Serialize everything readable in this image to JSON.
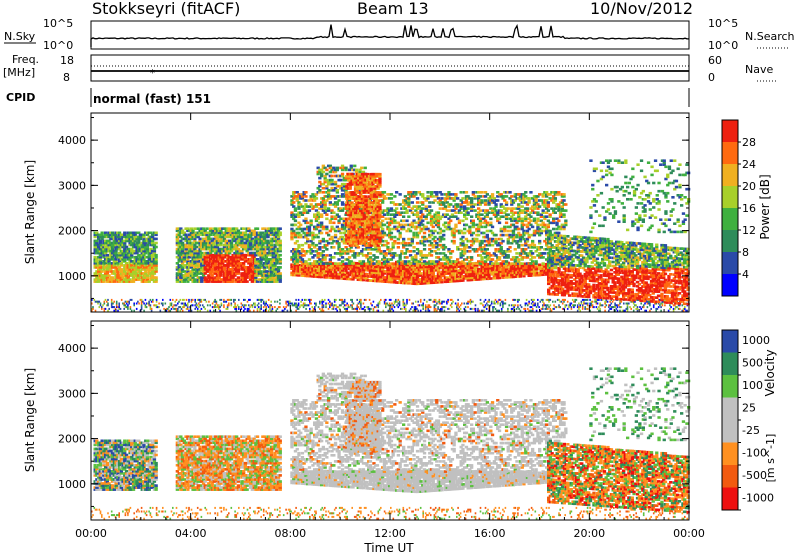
{
  "header": {
    "station": "Stokkseyri (fitACF)",
    "beam": "Beam 13",
    "date": "10/Nov/2012"
  },
  "top_panels": {
    "nsky_label": "N.Sky",
    "nsky_ticks": [
      "10^5",
      "10^0"
    ],
    "nsearch_ticks": [
      "10^5",
      "10^0"
    ],
    "nsearch_label": "N.Search",
    "freq_label": "Freq.",
    "freq_unit": "[MHz]",
    "freq_ticks": [
      "18",
      "8"
    ],
    "nave_ticks": [
      "60",
      "0"
    ],
    "nave_label": "Nave",
    "cpid_label": "CPID",
    "cpid_value": "normal (fast) 151"
  },
  "colors": {
    "power": [
      "#0000ff",
      "#2a4aa8",
      "#2e8c5a",
      "#3fb03f",
      "#a8d02a",
      "#f0b020",
      "#ff6a10",
      "#ee2010"
    ],
    "velocity": [
      "#ee1010",
      "#f25a10",
      "#ff9020",
      "#c0c0c0",
      "#c0c0c0",
      "#5cc040",
      "#2e8c5a",
      "#2a4aa8"
    ],
    "ground_scatter": "#c0c0c0"
  },
  "chart_data": [
    {
      "type": "heatmap",
      "panel": "power",
      "xlabel": "",
      "ylabel": "Slant Range [km]",
      "yticks": [
        "1000",
        "2000",
        "3000",
        "4000"
      ],
      "ylim": [
        200,
        4600
      ],
      "colorbar_label": "Power [dB]",
      "colorbar_ticks": [
        "4",
        "8",
        "12",
        "16",
        "20",
        "24",
        "28"
      ],
      "color_range": [
        0,
        32
      ]
    },
    {
      "type": "heatmap",
      "panel": "velocity",
      "xlabel": "Time UT",
      "ylabel": "Slant Range [km]",
      "yticks": [
        "1000",
        "2000",
        "3000",
        "4000"
      ],
      "ylim": [
        200,
        4600
      ],
      "xticks": [
        "00:00",
        "04:00",
        "08:00",
        "12:00",
        "16:00",
        "20:00",
        "00:00"
      ],
      "colorbar_label": "Velocity",
      "colorbar_unit": "[m s^-1]",
      "colorbar_ticks": [
        "1000",
        "500",
        "100",
        "25",
        "-25",
        "-100",
        "-500",
        "-1000"
      ]
    }
  ]
}
